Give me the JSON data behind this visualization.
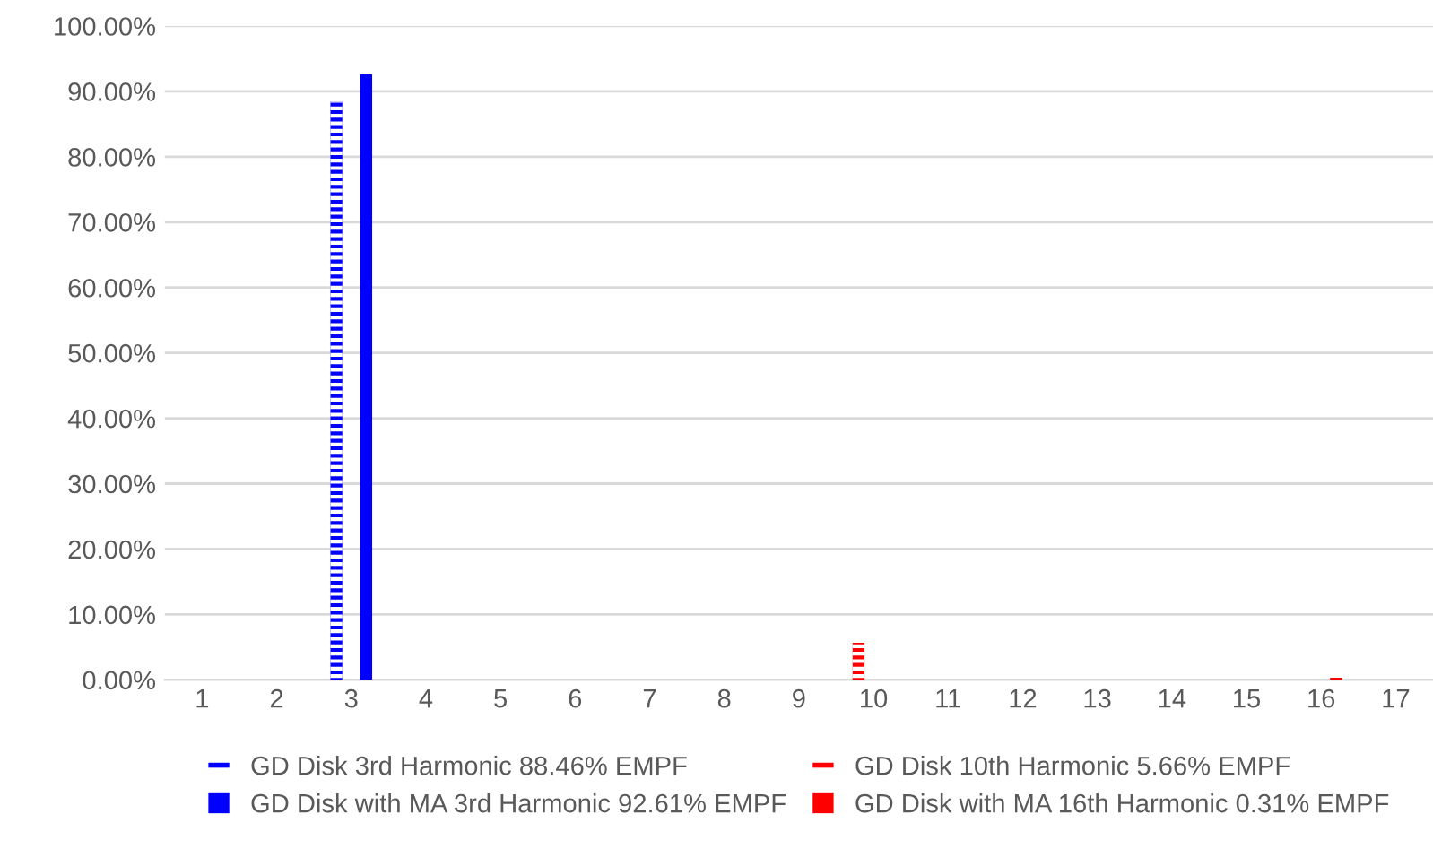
{
  "chart_data": {
    "type": "bar",
    "categories": [
      "1",
      "2",
      "3",
      "4",
      "5",
      "6",
      "7",
      "8",
      "9",
      "10",
      "11",
      "12",
      "13",
      "14",
      "15",
      "16",
      "17"
    ],
    "series": [
      {
        "name": "GD Disk 3rd Harmonic 88.46% EMPF",
        "color": "#0000ff",
        "values": [
          null,
          null,
          88.46,
          null,
          null,
          null,
          null,
          null,
          null,
          null,
          null,
          null,
          null,
          null,
          null,
          null,
          null
        ]
      },
      {
        "name": "GD Disk 10th Harmonic 5.66% EMPF",
        "color": "#ff0000",
        "values": [
          null,
          null,
          null,
          null,
          null,
          null,
          null,
          null,
          null,
          5.66,
          null,
          null,
          null,
          null,
          null,
          null,
          null
        ]
      },
      {
        "name": "GD Disk with MA 3rd Harmonic 92.61% EMPF",
        "color": "#0000ff",
        "values": [
          null,
          null,
          92.61,
          null,
          null,
          null,
          null,
          null,
          null,
          null,
          null,
          null,
          null,
          null,
          null,
          null,
          null
        ]
      },
      {
        "name": "GD Disk with MA 16th Harmonic 0.31% EMPF",
        "color": "#ff0000",
        "values": [
          null,
          null,
          null,
          null,
          null,
          null,
          null,
          null,
          null,
          null,
          null,
          null,
          null,
          null,
          null,
          0.31,
          null
        ]
      }
    ],
    "ylim": [
      0,
      100
    ],
    "yticks": [
      {
        "value": 0,
        "label": "0.00%"
      },
      {
        "value": 10,
        "label": "10.00%"
      },
      {
        "value": 20,
        "label": "20.00%"
      },
      {
        "value": 30,
        "label": "30.00%"
      },
      {
        "value": 40,
        "label": "40.00%"
      },
      {
        "value": 50,
        "label": "50.00%"
      },
      {
        "value": 60,
        "label": "60.00%"
      },
      {
        "value": 70,
        "label": "70.00%"
      },
      {
        "value": 80,
        "label": "80.00%"
      },
      {
        "value": 90,
        "label": "90.00%"
      },
      {
        "value": 100,
        "label": "100.00%"
      }
    ],
    "grid": "y",
    "legend": "bottom"
  }
}
